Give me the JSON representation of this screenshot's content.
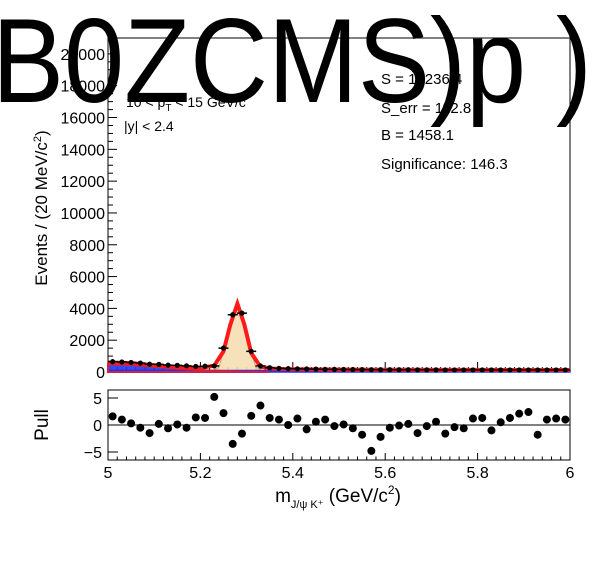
{
  "chart_data": [
    {
      "type": "scatter",
      "panel": "main",
      "overlay_text": "B0ZCMS)p )",
      "xlim": [
        5.0,
        6.0
      ],
      "ylim": [
        0,
        21000
      ],
      "ylabel": "Events / (20 MeV/c²)",
      "yticks": [
        "0",
        "2000",
        "4000",
        "6000",
        "8000",
        "10000",
        "12000",
        "14000",
        "16000",
        "18000",
        "20000"
      ],
      "annotations": {
        "pt_range": "10 < p_T < 15 GeV/c",
        "y_range": "|y| < 2.4",
        "signal": "S = 10236.4",
        "signal_err": "S_err = 112.8",
        "background": "B = 1458.1",
        "significance": "Significance: 146.3"
      },
      "colors": {
        "total_fit": "#ff1a1a",
        "signal_fill": "#f5deb3",
        "combinatorial": "#2233ee",
        "peaking_bkg": "#cc2244"
      },
      "x": [
        5.01,
        5.03,
        5.05,
        5.07,
        5.09,
        5.11,
        5.13,
        5.15,
        5.17,
        5.19,
        5.21,
        5.23,
        5.25,
        5.27,
        5.29,
        5.31,
        5.33,
        5.35,
        5.37,
        5.39,
        5.41,
        5.43,
        5.45,
        5.47,
        5.49,
        5.51,
        5.53,
        5.55,
        5.57,
        5.59,
        5.61,
        5.63,
        5.65,
        5.67,
        5.69,
        5.71,
        5.73,
        5.75,
        5.77,
        5.79,
        5.81,
        5.83,
        5.85,
        5.87,
        5.89,
        5.91,
        5.93,
        5.95,
        5.97,
        5.99
      ],
      "y": [
        650,
        630,
        600,
        560,
        490,
        480,
        430,
        420,
        390,
        350,
        360,
        380,
        1500,
        3600,
        3700,
        1300,
        380,
        270,
        230,
        210,
        200,
        190,
        180,
        170,
        165,
        160,
        155,
        150,
        145,
        145,
        140,
        140,
        140,
        135,
        135,
        135,
        130,
        130,
        130,
        130,
        130,
        130,
        128,
        128,
        128,
        128,
        128,
        128,
        128,
        128
      ],
      "fit": {
        "total": [
          [
            5.0,
            600
          ],
          [
            5.05,
            560
          ],
          [
            5.1,
            420
          ],
          [
            5.15,
            300
          ],
          [
            5.2,
            250
          ],
          [
            5.23,
            400
          ],
          [
            5.25,
            1300
          ],
          [
            5.265,
            3000
          ],
          [
            5.28,
            4300
          ],
          [
            5.295,
            3000
          ],
          [
            5.31,
            1200
          ],
          [
            5.33,
            330
          ],
          [
            5.36,
            200
          ],
          [
            5.4,
            170
          ],
          [
            5.5,
            150
          ],
          [
            5.6,
            140
          ],
          [
            5.7,
            135
          ],
          [
            5.8,
            130
          ],
          [
            5.9,
            128
          ],
          [
            6.0,
            125
          ]
        ],
        "signal": [
          [
            5.22,
            0
          ],
          [
            5.24,
            300
          ],
          [
            5.26,
            2200
          ],
          [
            5.28,
            4100
          ],
          [
            5.3,
            2200
          ],
          [
            5.32,
            300
          ],
          [
            5.34,
            0
          ]
        ],
        "combinatorial": [
          [
            5.0,
            110
          ],
          [
            5.2,
            95
          ],
          [
            5.4,
            85
          ],
          [
            5.6,
            78
          ],
          [
            5.8,
            72
          ],
          [
            6.0,
            68
          ]
        ],
        "peaking": [
          [
            5.0,
            480
          ],
          [
            5.05,
            440
          ],
          [
            5.1,
            320
          ],
          [
            5.15,
            200
          ],
          [
            5.2,
            120
          ],
          [
            5.25,
            60
          ],
          [
            5.3,
            20
          ],
          [
            5.35,
            0
          ]
        ]
      }
    },
    {
      "type": "scatter",
      "panel": "pull",
      "xlabel": "m_{J/ψ K⁺} (GeV/c²)",
      "ylabel": "Pull",
      "xlim": [
        5.0,
        6.0
      ],
      "ylim": [
        -6,
        6
      ],
      "xticks": [
        "5",
        "5.2",
        "5.4",
        "5.6",
        "5.8",
        "6"
      ],
      "yticks": [
        "−5",
        "0",
        "5"
      ],
      "x": [
        5.01,
        5.03,
        5.05,
        5.07,
        5.09,
        5.11,
        5.13,
        5.15,
        5.17,
        5.19,
        5.21,
        5.23,
        5.25,
        5.27,
        5.29,
        5.31,
        5.33,
        5.35,
        5.37,
        5.39,
        5.41,
        5.43,
        5.45,
        5.47,
        5.49,
        5.51,
        5.53,
        5.55,
        5.57,
        5.59,
        5.61,
        5.63,
        5.65,
        5.67,
        5.69,
        5.71,
        5.73,
        5.75,
        5.77,
        5.79,
        5.81,
        5.83,
        5.85,
        5.87,
        5.89,
        5.91,
        5.93,
        5.95,
        5.97,
        5.99
      ],
      "y": [
        1.6,
        1.0,
        0.3,
        -0.5,
        -1.5,
        0.2,
        -0.6,
        0.1,
        -0.5,
        1.4,
        1.3,
        5.2,
        2.2,
        -3.5,
        -1.6,
        1.7,
        3.6,
        1.3,
        1.0,
        0.0,
        1.2,
        -0.8,
        0.6,
        1.0,
        -0.2,
        0.1,
        -0.6,
        -1.8,
        -4.8,
        -2.2,
        -0.5,
        -0.1,
        0.2,
        -1.5,
        -0.2,
        0.6,
        -1.6,
        -0.4,
        -0.6,
        1.2,
        1.3,
        -1.0,
        0.5,
        1.3,
        2.1,
        2.4,
        -1.8,
        1.0,
        1.2,
        1.0
      ]
    }
  ]
}
